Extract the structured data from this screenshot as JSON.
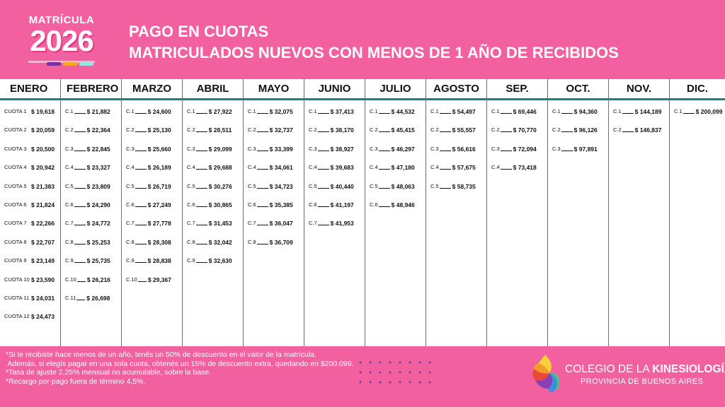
{
  "badge": {
    "top": "MATRÍCULA",
    "year": "2026"
  },
  "title": {
    "line1": "PAGO EN CUOTAS",
    "line2": "MATRICULADOS NUEVOS CON MENOS DE 1 AÑO DE RECIBIDOS"
  },
  "columns": [
    {
      "month": "ENERO",
      "rows": [
        {
          "label": "CUOTA 1",
          "amount": "$ 19,618"
        },
        {
          "label": "CUOTA 2",
          "amount": "$ 20,059"
        },
        {
          "label": "CUOTA 3",
          "amount": "$ 20,500"
        },
        {
          "label": "CUOTA 4",
          "amount": "$ 20,942"
        },
        {
          "label": "CUOTA 5",
          "amount": "$ 21,383"
        },
        {
          "label": "CUOTA 6",
          "amount": "$ 21,824"
        },
        {
          "label": "CUOTA 7",
          "amount": "$ 22,266"
        },
        {
          "label": "CUOTA 8",
          "amount": "$ 22,707"
        },
        {
          "label": "CUOTA 9",
          "amount": "$ 23,149"
        },
        {
          "label": "CUOTA 10",
          "amount": "$ 23,590"
        },
        {
          "label": "CUOTA 11",
          "amount": "$ 24,031"
        },
        {
          "label": "CUOTA 12",
          "amount": "$ 24,473"
        }
      ]
    },
    {
      "month": "FEBRERO",
      "rows": [
        {
          "label": "C.1",
          "amount": "$ 21,882"
        },
        {
          "label": "C.2",
          "amount": "$ 22,364"
        },
        {
          "label": "C.3",
          "amount": "$ 22,845"
        },
        {
          "label": "C.4",
          "amount": "$ 23,327"
        },
        {
          "label": "C.5",
          "amount": "$ 23,809"
        },
        {
          "label": "C.6",
          "amount": "$ 24,290"
        },
        {
          "label": "C.7",
          "amount": "$ 24,772"
        },
        {
          "label": "C.8",
          "amount": "$ 25,253"
        },
        {
          "label": "C.9",
          "amount": "$ 25,735"
        },
        {
          "label": "C.10",
          "amount": "$ 26,216"
        },
        {
          "label": "C.11",
          "amount": "$ 26,698"
        }
      ]
    },
    {
      "month": "MARZO",
      "rows": [
        {
          "label": "C.1",
          "amount": "$ 24,600"
        },
        {
          "label": "C.2",
          "amount": "$ 25,130"
        },
        {
          "label": "C.3",
          "amount": "$ 25,660"
        },
        {
          "label": "C.4",
          "amount": "$ 26,189"
        },
        {
          "label": "C.5",
          "amount": "$ 26,719"
        },
        {
          "label": "C.6",
          "amount": "$ 27,249"
        },
        {
          "label": "C.7",
          "amount": "$ 27,778"
        },
        {
          "label": "C.8",
          "amount": "$ 28,308"
        },
        {
          "label": "C.9",
          "amount": "$ 28,838"
        },
        {
          "label": "C.10",
          "amount": "$ 29,367"
        }
      ]
    },
    {
      "month": "ABRIL",
      "rows": [
        {
          "label": "C.1",
          "amount": "$ 27,922"
        },
        {
          "label": "C.2",
          "amount": "$ 28,511"
        },
        {
          "label": "C.3",
          "amount": "$ 29,099"
        },
        {
          "label": "C.4",
          "amount": "$ 29,688"
        },
        {
          "label": "C.5",
          "amount": "$ 30,276"
        },
        {
          "label": "C.6",
          "amount": "$ 30,865"
        },
        {
          "label": "C.7",
          "amount": "$ 31,453"
        },
        {
          "label": "C.8",
          "amount": "$ 32,042"
        },
        {
          "label": "C.9",
          "amount": "$ 32,630"
        }
      ]
    },
    {
      "month": "MAYO",
      "rows": [
        {
          "label": "C.1",
          "amount": "$ 32,075"
        },
        {
          "label": "C.2",
          "amount": "$ 32,737"
        },
        {
          "label": "C.3",
          "amount": "$ 33,399"
        },
        {
          "label": "C.4",
          "amount": "$ 34,061"
        },
        {
          "label": "C.5",
          "amount": "$ 34,723"
        },
        {
          "label": "C.6",
          "amount": "$ 35,385"
        },
        {
          "label": "C.7",
          "amount": "$ 36,047"
        },
        {
          "label": "C.8",
          "amount": "$ 36,709"
        }
      ]
    },
    {
      "month": "JUNIO",
      "rows": [
        {
          "label": "C.1",
          "amount": "$ 37,413"
        },
        {
          "label": "C.2",
          "amount": "$ 38,170"
        },
        {
          "label": "C.3",
          "amount": "$ 38,927"
        },
        {
          "label": "C.4",
          "amount": "$ 39,683"
        },
        {
          "label": "C.5",
          "amount": "$ 40,440"
        },
        {
          "label": "C.6",
          "amount": "$ 41,197"
        },
        {
          "label": "C.7",
          "amount": "$ 41,953"
        }
      ]
    },
    {
      "month": "JULIO",
      "rows": [
        {
          "label": "C.1",
          "amount": "$ 44,532"
        },
        {
          "label": "C.2",
          "amount": "$ 45,415"
        },
        {
          "label": "C.3",
          "amount": "$ 46,297"
        },
        {
          "label": "C.4",
          "amount": "$ 47,180"
        },
        {
          "label": "C.5",
          "amount": "$ 48,063"
        },
        {
          "label": "C.6",
          "amount": "$ 48,946"
        }
      ]
    },
    {
      "month": "AGOSTO",
      "rows": [
        {
          "label": "C.1",
          "amount": "$ 54,497"
        },
        {
          "label": "C.2",
          "amount": "$ 55,557"
        },
        {
          "label": "C.3",
          "amount": "$ 56,616"
        },
        {
          "label": "C.4",
          "amount": "$ 57,675"
        },
        {
          "label": "C.5",
          "amount": "$ 58,735"
        }
      ]
    },
    {
      "month": "SEP.",
      "rows": [
        {
          "label": "C.1",
          "amount": "$ 69,446"
        },
        {
          "label": "C.2",
          "amount": "$ 70,770"
        },
        {
          "label": "C.3",
          "amount": "$ 72,094"
        },
        {
          "label": "C.4",
          "amount": "$ 73,418"
        }
      ]
    },
    {
      "month": "OCT.",
      "rows": [
        {
          "label": "C.1",
          "amount": "$ 94,360"
        },
        {
          "label": "C.2",
          "amount": "$ 96,126"
        },
        {
          "label": "C.3",
          "amount": "$ 97,891"
        }
      ]
    },
    {
      "month": "NOV.",
      "rows": [
        {
          "label": "C.1",
          "amount": "$ 144,189"
        },
        {
          "label": "C.2",
          "amount": "$ 146,837"
        }
      ]
    },
    {
      "month": "DIC.",
      "rows": [
        {
          "label": "C.1",
          "amount": "$ 200,099"
        }
      ]
    }
  ],
  "footer": {
    "line1": "*Si te recibiste hace menos de un año, tenés un 50% de descuento en el valor de la matrícula.",
    "line2": " Además, si elegís pagar en una sola cuota, obtenés un 15% de descuento extra, quedando en $200.099.",
    "line3": "*Tasa de ajuste 2,25% mensual no acumulable, sobre la base.",
    "line4": "*Recargo por pago fuera de término 4,5%."
  },
  "logo": {
    "line1a": "COLEGIO DE LA ",
    "line1b": "KINESIOLOGÍA",
    "line2": "PROVINCIA DE BUENOS AIRES"
  },
  "colors": {
    "background": "#f3609f",
    "header_rule": "#1b7f86",
    "badge_bars": [
      "#7b2ea0",
      "#f5a623",
      "#9be3e0"
    ]
  }
}
